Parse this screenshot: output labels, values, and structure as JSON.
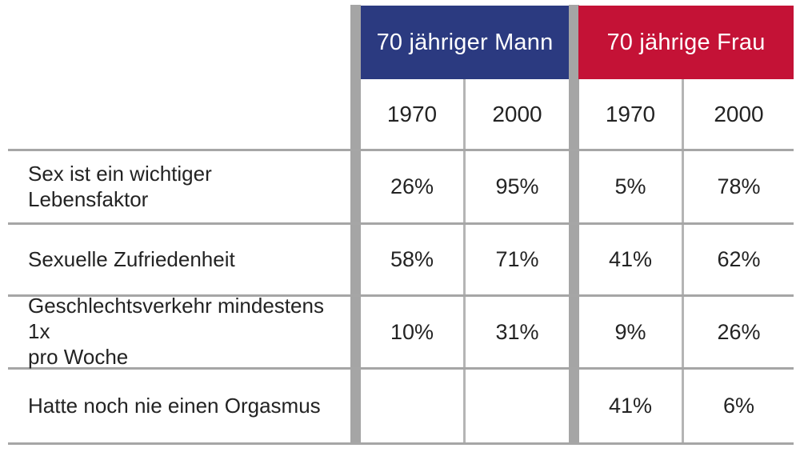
{
  "colors": {
    "man_header_bg": "#2B3A80",
    "frau_header_bg": "#C41236",
    "divider_gray": "#A5A5A5",
    "separator_line_gray": "#A6A6A6",
    "thin_line_gray": "#B5B5B5",
    "header_text": "#FFFFFF",
    "body_text": "#232323"
  },
  "table": {
    "groups": [
      {
        "label": "70 jähriger Mann",
        "color": "#2B3A80"
      },
      {
        "label": "70 jährige Frau",
        "color": "#C41236"
      }
    ],
    "year_headers": [
      "1970",
      "2000",
      "1970",
      "2000"
    ],
    "rows": [
      {
        "label": "Sex ist ein wichtiger Lebensfaktor",
        "lines": [
          "Sex ist ein wichtiger",
          "Lebensfaktor"
        ],
        "values": [
          "26%",
          "95%",
          "5%",
          "78%"
        ]
      },
      {
        "label": "Sexuelle Zufriedenheit",
        "lines": [
          "Sexuelle Zufriedenheit"
        ],
        "values": [
          "58%",
          "71%",
          "41%",
          "62%"
        ]
      },
      {
        "label": "Geschlechtsverkehr mindestens 1x pro Woche",
        "lines": [
          "Geschlechtsverkehr mindestens 1x",
          "pro Woche"
        ],
        "values": [
          "10%",
          "31%",
          "9%",
          "26%"
        ]
      },
      {
        "label": "Hatte noch nie einen Orgasmus",
        "lines": [
          "Hatte noch nie einen Orgasmus"
        ],
        "values": [
          "",
          "",
          "41%",
          "6%"
        ]
      }
    ]
  },
  "chart_data": {
    "type": "table",
    "unit": "%",
    "column_groups": [
      "70 jähriger Mann",
      "70 jährige Frau"
    ],
    "columns": [
      "Mann 1970",
      "Mann 2000",
      "Frau 1970",
      "Frau 2000"
    ],
    "rows": [
      {
        "label": "Sex ist ein wichtiger Lebensfaktor",
        "mann_1970": 26,
        "mann_2000": 95,
        "frau_1970": 5,
        "frau_2000": 78
      },
      {
        "label": "Sexuelle Zufriedenheit",
        "mann_1970": 58,
        "mann_2000": 71,
        "frau_1970": 41,
        "frau_2000": 62
      },
      {
        "label": "Geschlechtsverkehr mindestens 1x pro Woche",
        "mann_1970": 10,
        "mann_2000": 31,
        "frau_1970": 9,
        "frau_2000": 26
      },
      {
        "label": "Hatte noch nie einen Orgasmus",
        "mann_1970": null,
        "mann_2000": null,
        "frau_1970": 41,
        "frau_2000": 6
      }
    ]
  }
}
